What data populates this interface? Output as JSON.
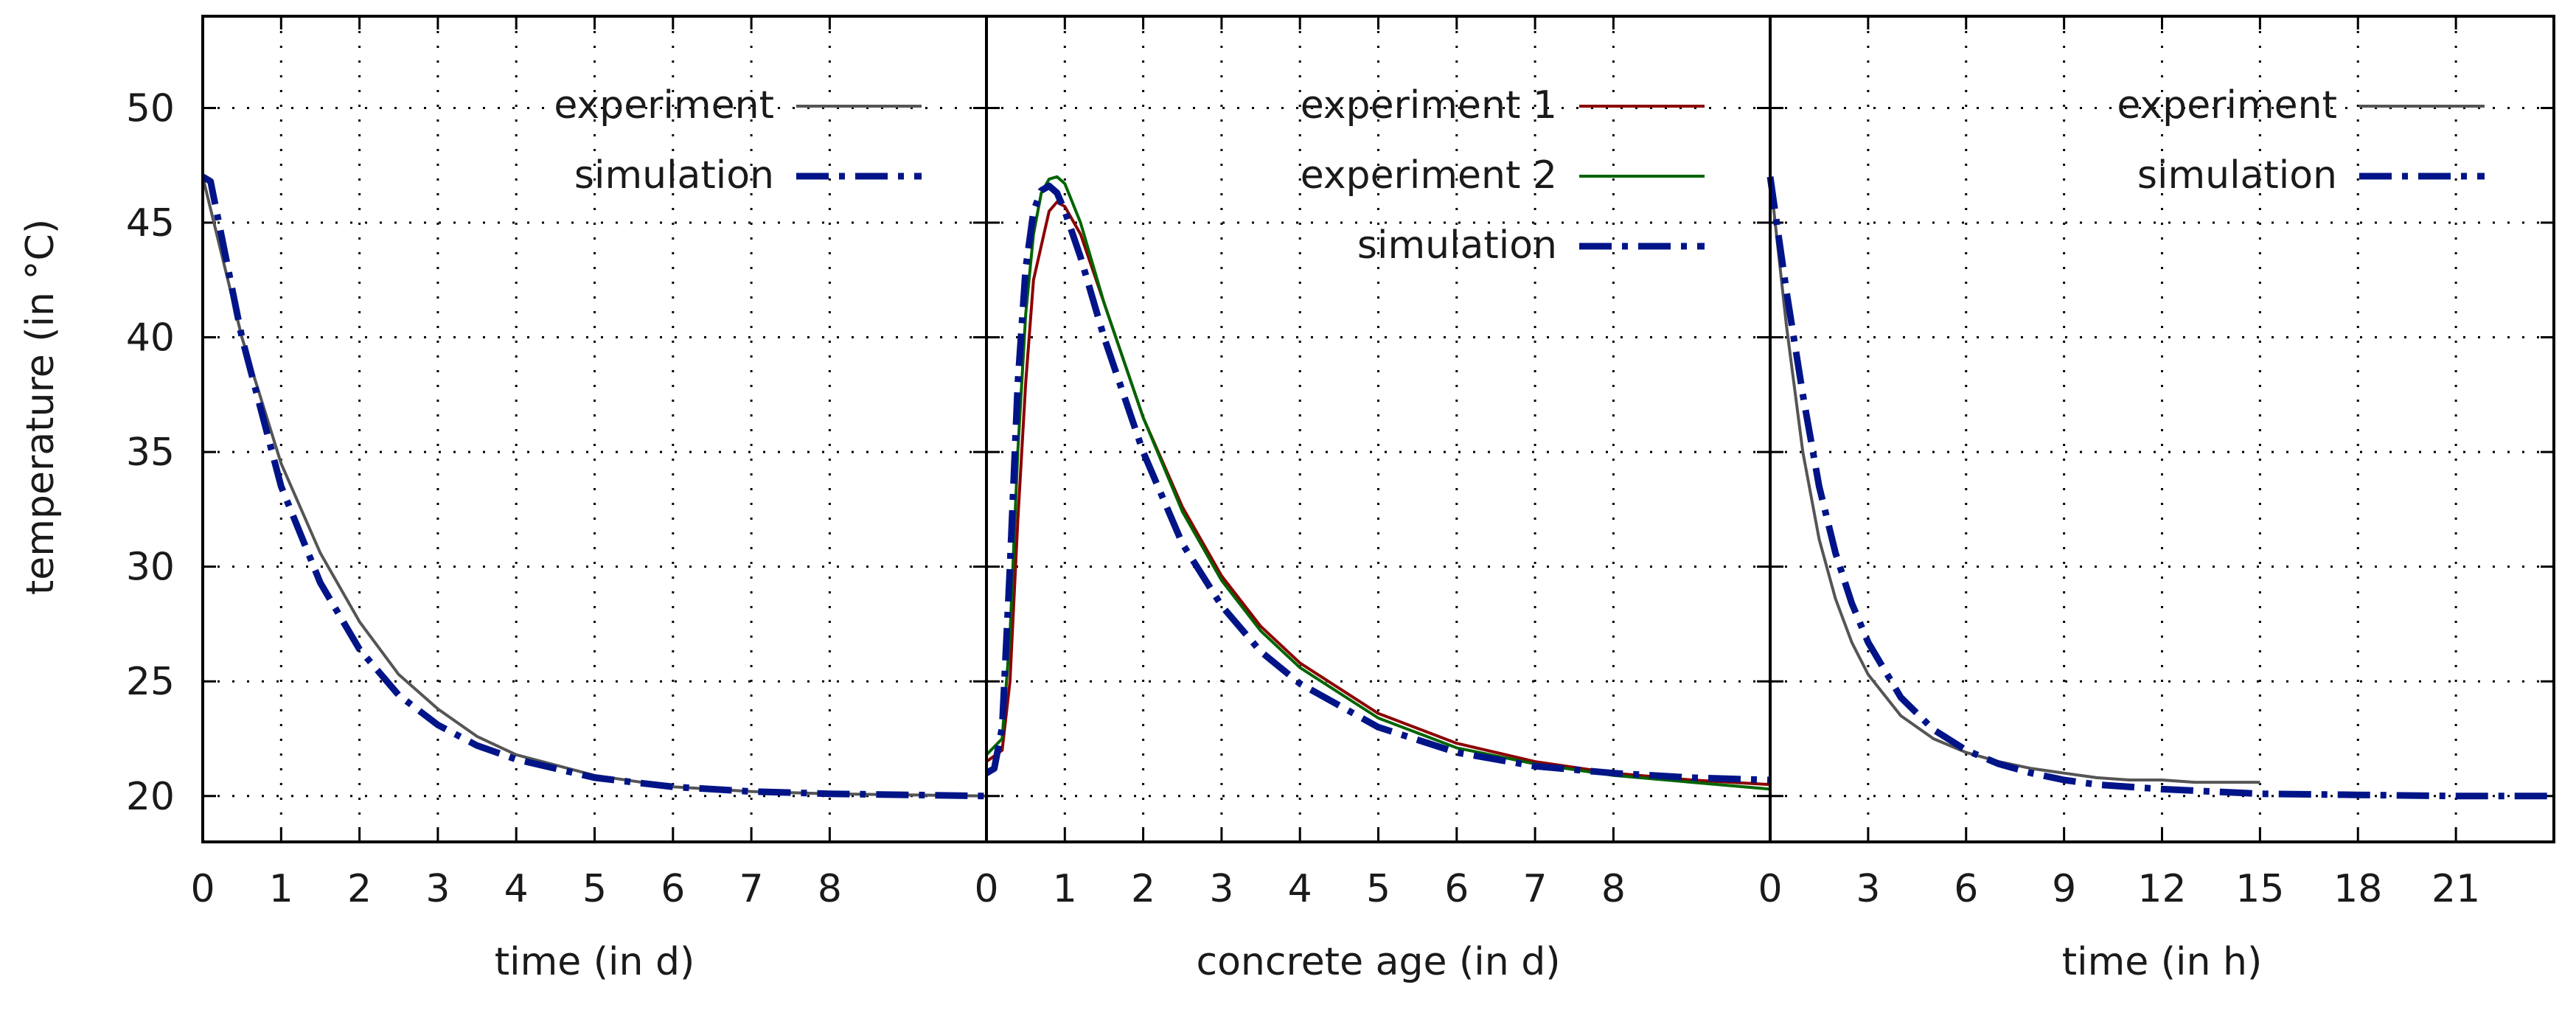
{
  "chart_data": [
    {
      "type": "line",
      "xlabel": "time (in d)",
      "ylabel": "temperature (in °C)",
      "xlim": [
        0,
        10
      ],
      "ylim": [
        18,
        54
      ],
      "xticks": [
        0,
        1,
        2,
        3,
        4,
        5,
        6,
        7,
        8
      ],
      "yticks": [
        20,
        25,
        30,
        35,
        40,
        45,
        50
      ],
      "grid": true,
      "legend": "top-right",
      "series": [
        {
          "name": "experiment",
          "style": "solid",
          "color": "#555555",
          "x": [
            0,
            0.5,
            1,
            1.5,
            2,
            2.5,
            3,
            3.5,
            4,
            5,
            6,
            7,
            8,
            9,
            10
          ],
          "y": [
            47,
            40.0,
            34.5,
            30.6,
            27.6,
            25.3,
            23.8,
            22.6,
            21.8,
            20.9,
            20.4,
            20.2,
            20.1,
            20.05,
            20
          ]
        },
        {
          "name": "simulation",
          "style": "dashdot",
          "color": "#001488",
          "x": [
            0,
            0.1,
            0.5,
            1,
            1.5,
            2,
            2.5,
            3,
            3.5,
            4,
            5,
            6,
            7,
            8,
            9,
            10
          ],
          "y": [
            47,
            46.8,
            40.0,
            33.5,
            29.3,
            26.4,
            24.4,
            23.1,
            22.2,
            21.6,
            20.8,
            20.4,
            20.2,
            20.1,
            20.05,
            20
          ]
        }
      ]
    },
    {
      "type": "line",
      "xlabel": "concrete age (in d)",
      "xlim": [
        0,
        10
      ],
      "ylim": [
        18,
        54
      ],
      "xticks": [
        0,
        1,
        2,
        3,
        4,
        5,
        6,
        7,
        8
      ],
      "yticks": [
        20,
        25,
        30,
        35,
        40,
        45,
        50
      ],
      "grid": true,
      "legend": "top-right",
      "series": [
        {
          "name": "experiment 1",
          "style": "solid",
          "color": "#8b0000",
          "x": [
            0,
            0.2,
            0.3,
            0.4,
            0.5,
            0.6,
            0.8,
            0.9,
            1.0,
            1.2,
            1.5,
            2,
            2.5,
            3,
            3.5,
            4,
            5,
            6,
            7,
            8,
            9,
            10
          ],
          "y": [
            21.5,
            22.0,
            25,
            32,
            38,
            42.5,
            45.5,
            45.9,
            45.7,
            44.5,
            41.5,
            36.5,
            32.6,
            29.6,
            27.4,
            25.8,
            23.6,
            22.3,
            21.5,
            21.0,
            20.7,
            20.5
          ]
        },
        {
          "name": "experiment 2",
          "style": "solid",
          "color": "#006400",
          "x": [
            0,
            0.2,
            0.3,
            0.4,
            0.5,
            0.6,
            0.7,
            0.8,
            0.9,
            1.0,
            1.2,
            1.5,
            2,
            2.5,
            3,
            3.5,
            4,
            5,
            6,
            7,
            8,
            9,
            10
          ],
          "y": [
            21.8,
            22.5,
            27,
            35,
            41,
            44.5,
            46.3,
            46.9,
            47.0,
            46.7,
            45.0,
            41.5,
            36.5,
            32.4,
            29.4,
            27.2,
            25.6,
            23.4,
            22.1,
            21.4,
            20.9,
            20.6,
            20.3
          ]
        },
        {
          "name": "simulation",
          "style": "dashdot",
          "color": "#001488",
          "x": [
            0,
            0.1,
            0.2,
            0.3,
            0.4,
            0.5,
            0.6,
            0.7,
            0.8,
            0.9,
            1.0,
            1.2,
            1.5,
            2,
            2.5,
            3,
            3.5,
            4,
            5,
            6,
            7,
            8,
            9,
            10
          ],
          "y": [
            21.0,
            21.2,
            23.0,
            30.0,
            38.0,
            43.0,
            45.5,
            46.4,
            46.6,
            46.3,
            45.5,
            43.5,
            40.0,
            35.0,
            31.0,
            28.3,
            26.3,
            24.9,
            23.0,
            21.9,
            21.3,
            21.0,
            20.8,
            20.7
          ]
        }
      ]
    },
    {
      "type": "line",
      "xlabel": "time (in h)",
      "xlim": [
        0,
        24
      ],
      "ylim": [
        18,
        54
      ],
      "xticks": [
        0,
        3,
        6,
        9,
        12,
        15,
        18,
        21
      ],
      "yticks": [
        20,
        25,
        30,
        35,
        40,
        45,
        50
      ],
      "grid": true,
      "legend": "top-right",
      "series": [
        {
          "name": "experiment",
          "style": "solid",
          "color": "#555555",
          "x": [
            0,
            0.5,
            1,
            1.5,
            2,
            2.5,
            3,
            4,
            5,
            6,
            7,
            8,
            9,
            10,
            11,
            12,
            13,
            14,
            15
          ],
          "y": [
            47,
            40.5,
            35.0,
            31.2,
            28.6,
            26.7,
            25.3,
            23.5,
            22.5,
            21.9,
            21.5,
            21.2,
            21.0,
            20.8,
            20.7,
            20.7,
            20.6,
            20.6,
            20.6
          ]
        },
        {
          "name": "simulation",
          "style": "dashdot",
          "color": "#001488",
          "x": [
            0,
            0.5,
            1,
            1.5,
            2,
            2.5,
            3,
            4,
            5,
            6,
            7,
            8,
            9,
            10,
            12,
            15,
            18,
            21,
            24
          ],
          "y": [
            47,
            42.0,
            37.5,
            33.5,
            30.6,
            28.4,
            26.7,
            24.3,
            22.9,
            22.0,
            21.4,
            21.0,
            20.7,
            20.5,
            20.3,
            20.1,
            20.05,
            20,
            20
          ]
        }
      ]
    }
  ]
}
